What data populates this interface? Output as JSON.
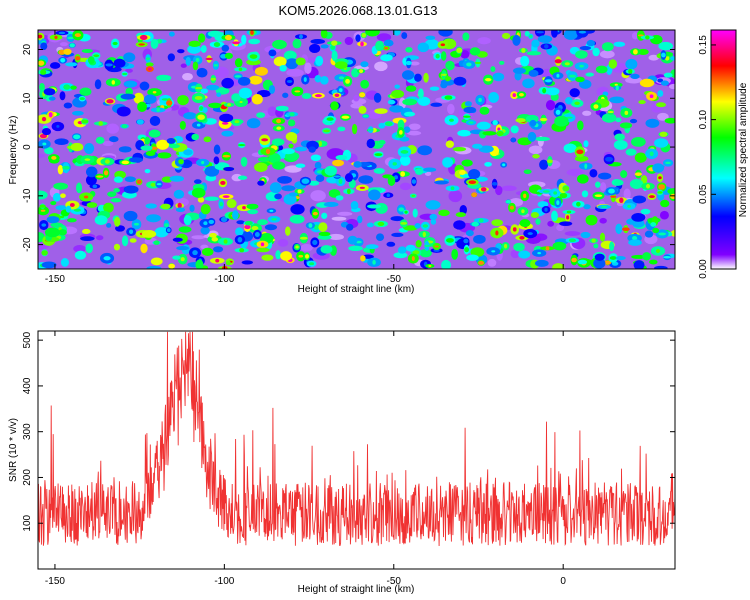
{
  "title": "KOM5.2026.068.13.01.G13",
  "chart_data": [
    {
      "type": "heatmap",
      "xlabel": "Height of straight line (km)",
      "ylabel": "Frequency (Hz)",
      "xlim": [
        -155,
        33
      ],
      "ylim": [
        -25,
        24
      ],
      "xticks": [
        -150,
        -100,
        -50,
        0
      ],
      "yticks": [
        -20,
        -10,
        0,
        10,
        20
      ],
      "colorbar": {
        "label": "Normalized spectral amplitude",
        "range": [
          0,
          0.16
        ],
        "ticks": [
          "0.00",
          "0.05",
          "0.10",
          "0.15"
        ],
        "colors": [
          "#ffffff",
          "#8000ff",
          "#0000ff",
          "#00ffff",
          "#00ff00",
          "#ffff00",
          "#ff0000",
          "#ff00ff"
        ]
      },
      "description_values": {
        "background_level": 0.02,
        "typical_blob_level": 0.06,
        "max_level": 0.15,
        "max_location": {
          "x": -122,
          "y": 16
        }
      }
    },
    {
      "type": "line",
      "xlabel": "Height of straight line (km)",
      "ylabel": "SNR (10 * v/v)",
      "xlim": [
        -155,
        33
      ],
      "ylim": [
        0,
        520
      ],
      "xticks": [
        -150,
        -100,
        -50,
        0
      ],
      "yticks": [
        100,
        200,
        300,
        400,
        500
      ],
      "color": "#f03232",
      "baseline_mean": 120,
      "noise_range": [
        40,
        300
      ],
      "peak": {
        "x": -112,
        "y": 510,
        "width_km": 5
      },
      "secondary_peak": {
        "x": -114,
        "y": 440
      }
    }
  ]
}
